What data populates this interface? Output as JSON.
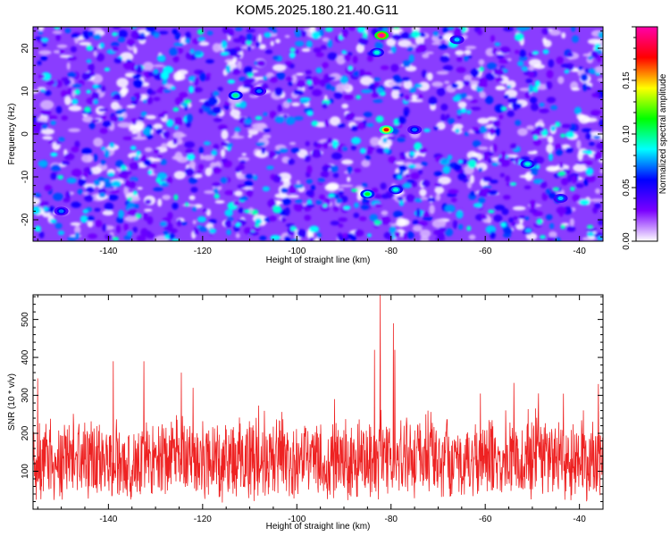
{
  "title": "KOM5.2025.180.21.40.G11",
  "chart_data": [
    {
      "type": "heatmap",
      "xlabel": "Height of straight line (km)",
      "ylabel": "Frequency (Hz)",
      "xlim": [
        -156,
        -35
      ],
      "ylim": [
        -25,
        25
      ],
      "xticks": [
        -140,
        -120,
        -100,
        -80,
        -60,
        -40
      ],
      "yticks": [
        -20,
        -10,
        0,
        10,
        20
      ],
      "colorbar": {
        "label": "Normalized spectral amplitude",
        "range": [
          0.0,
          0.2
        ],
        "ticks": [
          "0.00",
          "0.05",
          "0.10",
          "0.15"
        ],
        "tick_values": [
          0.0,
          0.05,
          0.1,
          0.15
        ],
        "colors": [
          "#ffffff",
          "#7a00ff",
          "#0000ff",
          "#00ffff",
          "#00ff00",
          "#ffff00",
          "#ff0000",
          "#ff00aa"
        ]
      },
      "hotspots": [
        {
          "x": -82,
          "y": 23,
          "value": 0.2
        },
        {
          "x": -81,
          "y": 1,
          "value": 0.17
        },
        {
          "x": -85,
          "y": -14,
          "value": 0.11
        },
        {
          "x": -113,
          "y": 9,
          "value": 0.1
        },
        {
          "x": -79,
          "y": -13,
          "value": 0.09
        },
        {
          "x": -51,
          "y": -7,
          "value": 0.09
        },
        {
          "x": -83,
          "y": 19,
          "value": 0.09
        },
        {
          "x": -66,
          "y": 22,
          "value": 0.08
        },
        {
          "x": -44,
          "y": -15,
          "value": 0.08
        },
        {
          "x": -75,
          "y": 1,
          "value": 0.07
        },
        {
          "x": -150,
          "y": -18,
          "value": 0.07
        },
        {
          "x": -108,
          "y": 10,
          "value": 0.07
        }
      ],
      "grid": false
    },
    {
      "type": "line",
      "xlabel": "Height of straight line (km)",
      "ylabel": "SNR (10 * v/v)",
      "xlim": [
        -156,
        -35
      ],
      "ylim": [
        0,
        565
      ],
      "xticks": [
        -140,
        -120,
        -100,
        -80,
        -60,
        -40
      ],
      "yticks": [
        100,
        200,
        300,
        400,
        500
      ],
      "color": "#ee2222",
      "baseline": 130,
      "peaks": [
        {
          "x": -82.3,
          "y": 565
        },
        {
          "x": -79.5,
          "y": 490
        },
        {
          "x": -83.5,
          "y": 420
        },
        {
          "x": -79.2,
          "y": 420
        },
        {
          "x": -139,
          "y": 390
        },
        {
          "x": -132.5,
          "y": 390
        },
        {
          "x": -155,
          "y": 345
        },
        {
          "x": -124.5,
          "y": 360
        },
        {
          "x": -36,
          "y": 330
        },
        {
          "x": -61,
          "y": 305
        },
        {
          "x": -122,
          "y": 320
        },
        {
          "x": -92,
          "y": 290
        }
      ],
      "grid": false
    }
  ]
}
